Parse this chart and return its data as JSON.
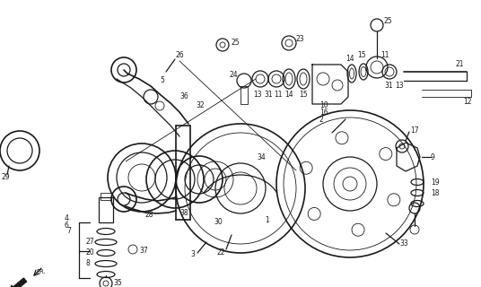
{
  "bg_color": "#ffffff",
  "line_color": "#1a1a1a",
  "fig_width": 5.36,
  "fig_height": 3.2,
  "dpi": 100
}
